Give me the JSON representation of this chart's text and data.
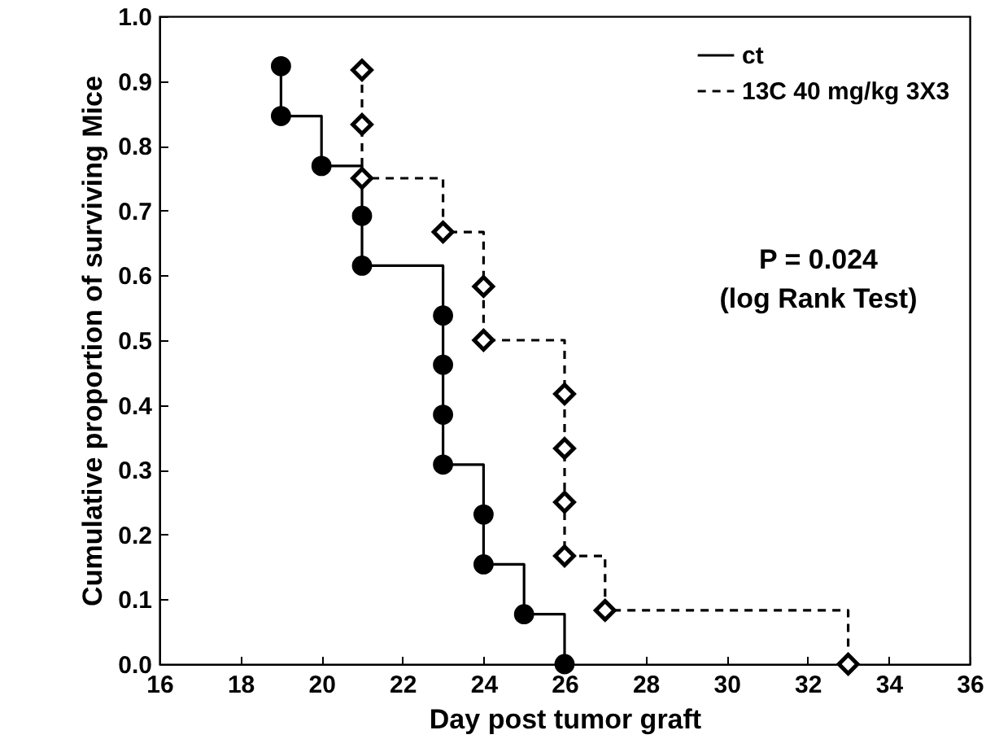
{
  "chart_data": {
    "type": "step",
    "xlabel": "Day post tumor graft",
    "ylabel": "Cumulative proportion of surviving Mice",
    "xlim": [
      16,
      36
    ],
    "xticks": [
      16,
      18,
      20,
      22,
      24,
      26,
      28,
      30,
      32,
      34,
      36
    ],
    "ylim": [
      0,
      1
    ],
    "yticks": [
      {
        "value": 0,
        "label": "0.0"
      },
      {
        "value": 0.1,
        "label": "0.1"
      },
      {
        "value": 0.2,
        "label": "0.2"
      },
      {
        "value": 0.3,
        "label": "0.3"
      },
      {
        "value": 0.4,
        "label": "0.4"
      },
      {
        "value": 0.5,
        "label": "0.5"
      },
      {
        "value": 0.6,
        "label": "0.6"
      },
      {
        "value": 0.7,
        "label": "0.7"
      },
      {
        "value": 0.8,
        "label": "0.8"
      },
      {
        "value": 0.9,
        "label": "0.9"
      },
      {
        "value": 1,
        "label": "1.0"
      }
    ],
    "grid": false,
    "legend": "top right",
    "annotations": [
      "P = 0.024",
      "(log Rank Test)"
    ],
    "series": [
      {
        "name": "ct",
        "color": "#000000",
        "line_style": "solid",
        "marker": "circle",
        "x": [
          19,
          19,
          20,
          21,
          21,
          23,
          23,
          23,
          23,
          24,
          24,
          25,
          26
        ],
        "values": [
          0.923,
          0.846,
          0.769,
          0.692,
          0.615,
          0.538,
          0.462,
          0.385,
          0.308,
          0.231,
          0.154,
          0.077,
          0
        ]
      },
      {
        "name": "13C 40 mg/kg 3X3",
        "color": "#000000",
        "line_style": "dashed",
        "marker": "diamond",
        "x": [
          21,
          21,
          21,
          23,
          24,
          24,
          26,
          26,
          26,
          26,
          27,
          33
        ],
        "values": [
          0.917,
          0.833,
          0.75,
          0.667,
          0.583,
          0.5,
          0.417,
          0.333,
          0.25,
          0.167,
          0.083,
          0
        ]
      }
    ]
  }
}
